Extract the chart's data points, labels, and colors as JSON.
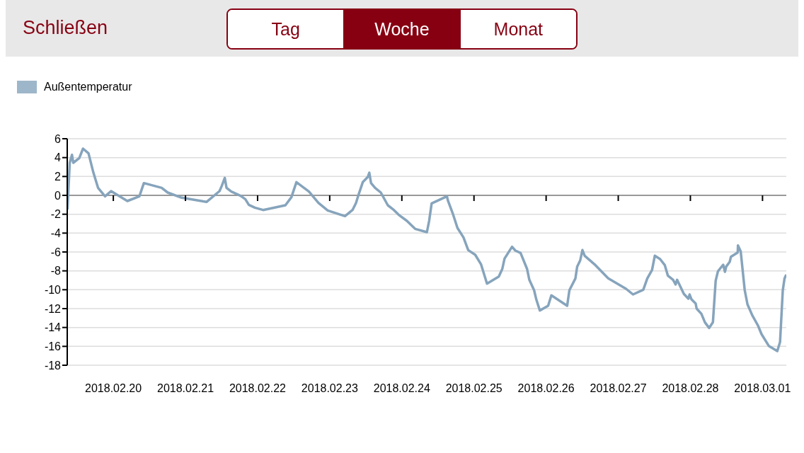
{
  "chart_data": {
    "type": "line",
    "annotations": [
      "Schließen",
      "Tag",
      "Woche",
      "Monat"
    ],
    "x": [
      "2018-02-19T08:45",
      "2018-02-19T09:30",
      "2018-02-19T10:15",
      "2018-02-19T10:40",
      "2018-02-19T12:40",
      "2018-02-19T13:55",
      "2018-02-19T15:45",
      "2018-02-19T17:20",
      "2018-02-19T18:55",
      "2018-02-19T21:15",
      "2018-02-19T23:15",
      "2018-02-20T04:40",
      "2018-02-20T08:40",
      "2018-02-20T10:10",
      "2018-02-20T16:05",
      "2018-02-20T18:05",
      "2018-02-20T22:45",
      "2018-02-21T07:00",
      "2018-02-21T11:20",
      "2018-02-21T12:05",
      "2018-02-21T13:05",
      "2018-02-21T13:40",
      "2018-02-21T15:15",
      "2018-02-21T18:20",
      "2018-02-21T19:55",
      "2018-02-21T21:05",
      "2018-02-21T23:05",
      "2018-02-22T01:50",
      "2018-02-22T09:15",
      "2018-02-22T11:15",
      "2018-02-22T12:55",
      "2018-02-22T17:05",
      "2018-02-22T20:15",
      "2018-02-22T23:20",
      "2018-02-23T05:05",
      "2018-02-23T07:35",
      "2018-02-23T08:45",
      "2018-02-23T09:35",
      "2018-02-23T11:00",
      "2018-02-23T12:40",
      "2018-02-23T13:10",
      "2018-02-23T13:45",
      "2018-02-23T15:05",
      "2018-02-23T17:00",
      "2018-02-23T19:20",
      "2018-02-23T21:20",
      "2018-02-23T22:55",
      "2018-02-24T01:40",
      "2018-02-24T04:25",
      "2018-02-24T08:20",
      "2018-02-24T09:05",
      "2018-02-24T09:55",
      "2018-02-24T15:00",
      "2018-02-24T15:20",
      "2018-02-24T16:55",
      "2018-02-24T18:30",
      "2018-02-24T20:30",
      "2018-02-24T22:05",
      "2018-02-25T00:25",
      "2018-02-25T02:20",
      "2018-02-25T04:20",
      "2018-02-25T08:15",
      "2018-02-25T09:25",
      "2018-02-25T10:10",
      "2018-02-25T12:40",
      "2018-02-25T13:45",
      "2018-02-25T15:30",
      "2018-02-25T17:40",
      "2018-02-25T18:25",
      "2018-02-25T20:00",
      "2018-02-25T20:45",
      "2018-02-25T21:55",
      "2018-02-26T00:40",
      "2018-02-26T01:45",
      "2018-02-26T07:00",
      "2018-02-26T07:45",
      "2018-02-26T09:45",
      "2018-02-26T10:20",
      "2018-02-26T11:20",
      "2018-02-26T12:05",
      "2018-02-26T12:50",
      "2018-02-26T16:25",
      "2018-02-26T17:55",
      "2018-02-26T20:40",
      "2018-02-27T02:35",
      "2018-02-27T04:55",
      "2018-02-27T08:20",
      "2018-02-27T09:40",
      "2018-02-27T11:15",
      "2018-02-27T12:10",
      "2018-02-27T13:55",
      "2018-02-27T15:30",
      "2018-02-27T16:30",
      "2018-02-27T18:15",
      "2018-02-27T19:05",
      "2018-02-27T19:35",
      "2018-02-27T21:50",
      "2018-02-27T23:20",
      "2018-02-27T23:45",
      "2018-02-28T00:20",
      "2018-02-28T01:45",
      "2018-02-28T02:05",
      "2018-02-28T03:40",
      "2018-02-28T04:50",
      "2018-02-28T06:15",
      "2018-02-28T07:30",
      "2018-02-28T08:25",
      "2018-02-28T09:10",
      "2018-02-28T10:55",
      "2018-02-28T11:30",
      "2018-02-28T11:55",
      "2018-02-28T13:05",
      "2018-02-28T13:30",
      "2018-02-28T15:45",
      "2018-02-28T15:50",
      "2018-02-28T16:45",
      "2018-02-28T18:05",
      "2018-02-28T19:00",
      "2018-02-28T20:35",
      "2018-02-28T22:30",
      "2018-02-28T23:40",
      "2018-03-01T02:05",
      "2018-03-01T04:55",
      "2018-03-01T05:50",
      "2018-03-01T06:45",
      "2018-03-01T07:20",
      "2018-03-01T07:55"
    ],
    "series": [
      {
        "name": "Außentemperatur",
        "color": "#86a4bc",
        "values": [
          -1.5,
          3.45,
          4.3,
          3.45,
          3.95,
          4.95,
          4.45,
          2.45,
          0.8,
          -0.1,
          0.45,
          -0.6,
          -0.1,
          1.3,
          0.8,
          0.3,
          -0.25,
          -0.7,
          0.45,
          1.0,
          1.85,
          0.8,
          0.4,
          -0.05,
          -0.4,
          -1.0,
          -1.3,
          -1.55,
          -1.05,
          -0.2,
          1.4,
          0.4,
          -0.8,
          -1.6,
          -2.2,
          -1.55,
          -0.8,
          0.05,
          1.4,
          1.95,
          2.4,
          1.3,
          0.8,
          0.3,
          -1.05,
          -1.55,
          -2.05,
          -2.7,
          -3.55,
          -3.9,
          -2.7,
          -0.85,
          -0.1,
          -0.55,
          -1.9,
          -3.45,
          -4.45,
          -5.8,
          -6.3,
          -7.3,
          -9.35,
          -8.6,
          -7.8,
          -6.7,
          -5.45,
          -5.85,
          -6.1,
          -7.8,
          -8.95,
          -10.05,
          -11.05,
          -12.2,
          -11.7,
          -10.6,
          -11.7,
          -10.05,
          -8.8,
          -7.55,
          -6.9,
          -5.8,
          -6.4,
          -7.4,
          -7.9,
          -8.8,
          -9.9,
          -10.5,
          -10.0,
          -8.8,
          -7.9,
          -6.4,
          -6.75,
          -7.4,
          -8.5,
          -8.95,
          -9.45,
          -8.95,
          -10.45,
          -10.95,
          -10.5,
          -11.0,
          -11.45,
          -12.0,
          -12.55,
          -13.45,
          -14.05,
          -13.45,
          -9.05,
          -8.05,
          -7.35,
          -8.1,
          -7.55,
          -7.05,
          -6.5,
          -6.05,
          -5.3,
          -5.95,
          -10.05,
          -11.55,
          -12.7,
          -13.8,
          -14.7,
          -15.95,
          -16.5,
          -15.55,
          -10.05,
          -8.8,
          -8.4
        ]
      }
    ],
    "xlim": [
      "2018-02-19T08:40",
      "2018-03-01T07:55"
    ],
    "xticks": [
      {
        "value": "2018-02-20",
        "label": "2018.02.20"
      },
      {
        "value": "2018-02-21",
        "label": "2018.02.21"
      },
      {
        "value": "2018-02-22",
        "label": "2018.02.22"
      },
      {
        "value": "2018-02-23",
        "label": "2018.02.23"
      },
      {
        "value": "2018-02-24",
        "label": "2018.02.24"
      },
      {
        "value": "2018-02-25",
        "label": "2018.02.25"
      },
      {
        "value": "2018-02-26",
        "label": "2018.02.26"
      },
      {
        "value": "2018-02-27",
        "label": "2018.02.27"
      },
      {
        "value": "2018-02-28",
        "label": "2018.02.28"
      },
      {
        "value": "2018-03-01",
        "label": "2018.03.01"
      }
    ],
    "ylim": [
      -18,
      6
    ],
    "yticks": [
      -18,
      -16,
      -14,
      -12,
      -10,
      -8,
      -6,
      -4,
      -2,
      0,
      2,
      4,
      6
    ],
    "grid": "y",
    "legend": "top left",
    "marker": "none",
    "line_style": "solid"
  }
}
